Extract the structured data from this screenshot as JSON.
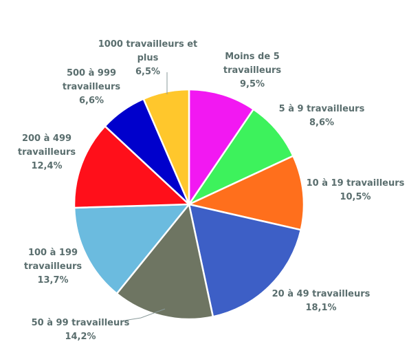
{
  "chart_data": {
    "type": "pie",
    "title": "",
    "slices": [
      {
        "name": [
          "Moins de 5",
          "travailleurs"
        ],
        "value_label": "9,5%",
        "value": 9.5,
        "color": "#F218F2"
      },
      {
        "name": [
          "5 à 9 travailleurs"
        ],
        "value_label": "8,6%",
        "value": 8.6,
        "color": "#3DF25C"
      },
      {
        "name": [
          "10 à 19 travailleurs"
        ],
        "value_label": "10,5%",
        "value": 10.5,
        "color": "#FF6F1C"
      },
      {
        "name": [
          "20 à 49 travailleurs"
        ],
        "value_label": "18,1%",
        "value": 18.1,
        "color": "#3D5FC6"
      },
      {
        "name": [
          "50 à 99 travailleurs"
        ],
        "value_label": "14,2%",
        "value": 14.2,
        "color": "#6E7562"
      },
      {
        "name": [
          "100 à 199",
          "travailleurs"
        ],
        "value_label": "13,7%",
        "value": 13.7,
        "color": "#6BBBDF"
      },
      {
        "name": [
          "200 à 499",
          "travailleurs"
        ],
        "value_label": "12,4%",
        "value": 12.4,
        "color": "#FF0F1A"
      },
      {
        "name": [
          "500 à 999",
          "travailleurs"
        ],
        "value_label": "6,6%",
        "value": 6.6,
        "color": "#0000CC"
      },
      {
        "name": [
          "1000 travailleurs et",
          "plus"
        ],
        "value_label": "6,5%",
        "value": 6.5,
        "color": "#FFC72C"
      }
    ]
  }
}
